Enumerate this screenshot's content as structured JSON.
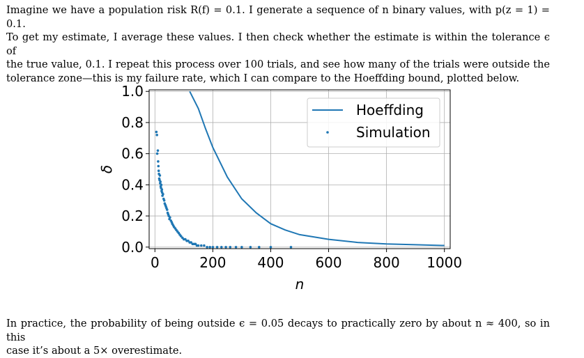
{
  "paragraph_top": [
    "Imagine we have a population risk R(f) = 0.1. I generate a sequence of n binary values, with p(z = 1) = 0.1.",
    "To get my estimate, I average these values. I then check whether the estimate is within the tolerance ϵ of",
    "the true value, 0.1. I repeat this process over 100 trials, and see how many of the trials were outside the",
    "tolerance zone—this is my failure rate, which I can compare to the Hoeffding bound, plotted below."
  ],
  "paragraph_bottom": [
    "In practice, the probability of being outside ϵ = 0.05 decays to practically zero by about n ≈ 400, so in this",
    "case it’s about a 5× overestimate."
  ],
  "chart_data": {
    "type": "line",
    "title": "",
    "xlabel": "n",
    "ylabel": "δ",
    "xlim": [
      -20,
      1020
    ],
    "ylim": [
      -0.01,
      1.01
    ],
    "x_ticks": [
      "0",
      "200",
      "400",
      "600",
      "800",
      "1000"
    ],
    "y_ticks": [
      "0.0",
      "0.2",
      "0.4",
      "0.6",
      "0.8",
      "1.0"
    ],
    "grid": true,
    "legend_position": "top-right",
    "color": "#1f77b4",
    "series": [
      {
        "name": "Hoeffding",
        "type": "line",
        "x": [
          120,
          150,
          175,
          200,
          250,
          300,
          350,
          400,
          450,
          500,
          600,
          700,
          800,
          900,
          1000
        ],
        "y": [
          1.0,
          0.89,
          0.76,
          0.64,
          0.45,
          0.31,
          0.22,
          0.15,
          0.11,
          0.08,
          0.05,
          0.03,
          0.02,
          0.015,
          0.01
        ]
      },
      {
        "name": "Simulation",
        "type": "scatter",
        "x": [
          5,
          7,
          8,
          10,
          11,
          12,
          13,
          14,
          15,
          16,
          17,
          18,
          19,
          20,
          21,
          22,
          23,
          24,
          25,
          26,
          28,
          30,
          32,
          34,
          36,
          38,
          40,
          42,
          44,
          46,
          48,
          50,
          52,
          55,
          58,
          60,
          63,
          66,
          70,
          74,
          78,
          82,
          86,
          90,
          95,
          100,
          105,
          110,
          115,
          120,
          125,
          130,
          135,
          140,
          145,
          150,
          160,
          170,
          180,
          190,
          200,
          215,
          230,
          245,
          260,
          280,
          300,
          330,
          360,
          400,
          470
        ],
        "y": [
          0.74,
          0.72,
          0.6,
          0.62,
          0.55,
          0.52,
          0.49,
          0.47,
          0.44,
          0.43,
          0.46,
          0.41,
          0.42,
          0.39,
          0.38,
          0.4,
          0.36,
          0.37,
          0.35,
          0.33,
          0.34,
          0.31,
          0.3,
          0.28,
          0.27,
          0.26,
          0.25,
          0.24,
          0.22,
          0.21,
          0.2,
          0.18,
          0.19,
          0.17,
          0.16,
          0.15,
          0.14,
          0.13,
          0.12,
          0.11,
          0.1,
          0.09,
          0.08,
          0.07,
          0.06,
          0.05,
          0.05,
          0.04,
          0.04,
          0.03,
          0.03,
          0.02,
          0.02,
          0.02,
          0.01,
          0.01,
          0.01,
          0.01,
          0.0,
          0.0,
          0.0,
          0.0,
          0.0,
          0.0,
          0.0,
          0.0,
          0.0,
          0.0,
          0.0,
          0.0,
          0.0
        ]
      }
    ]
  }
}
